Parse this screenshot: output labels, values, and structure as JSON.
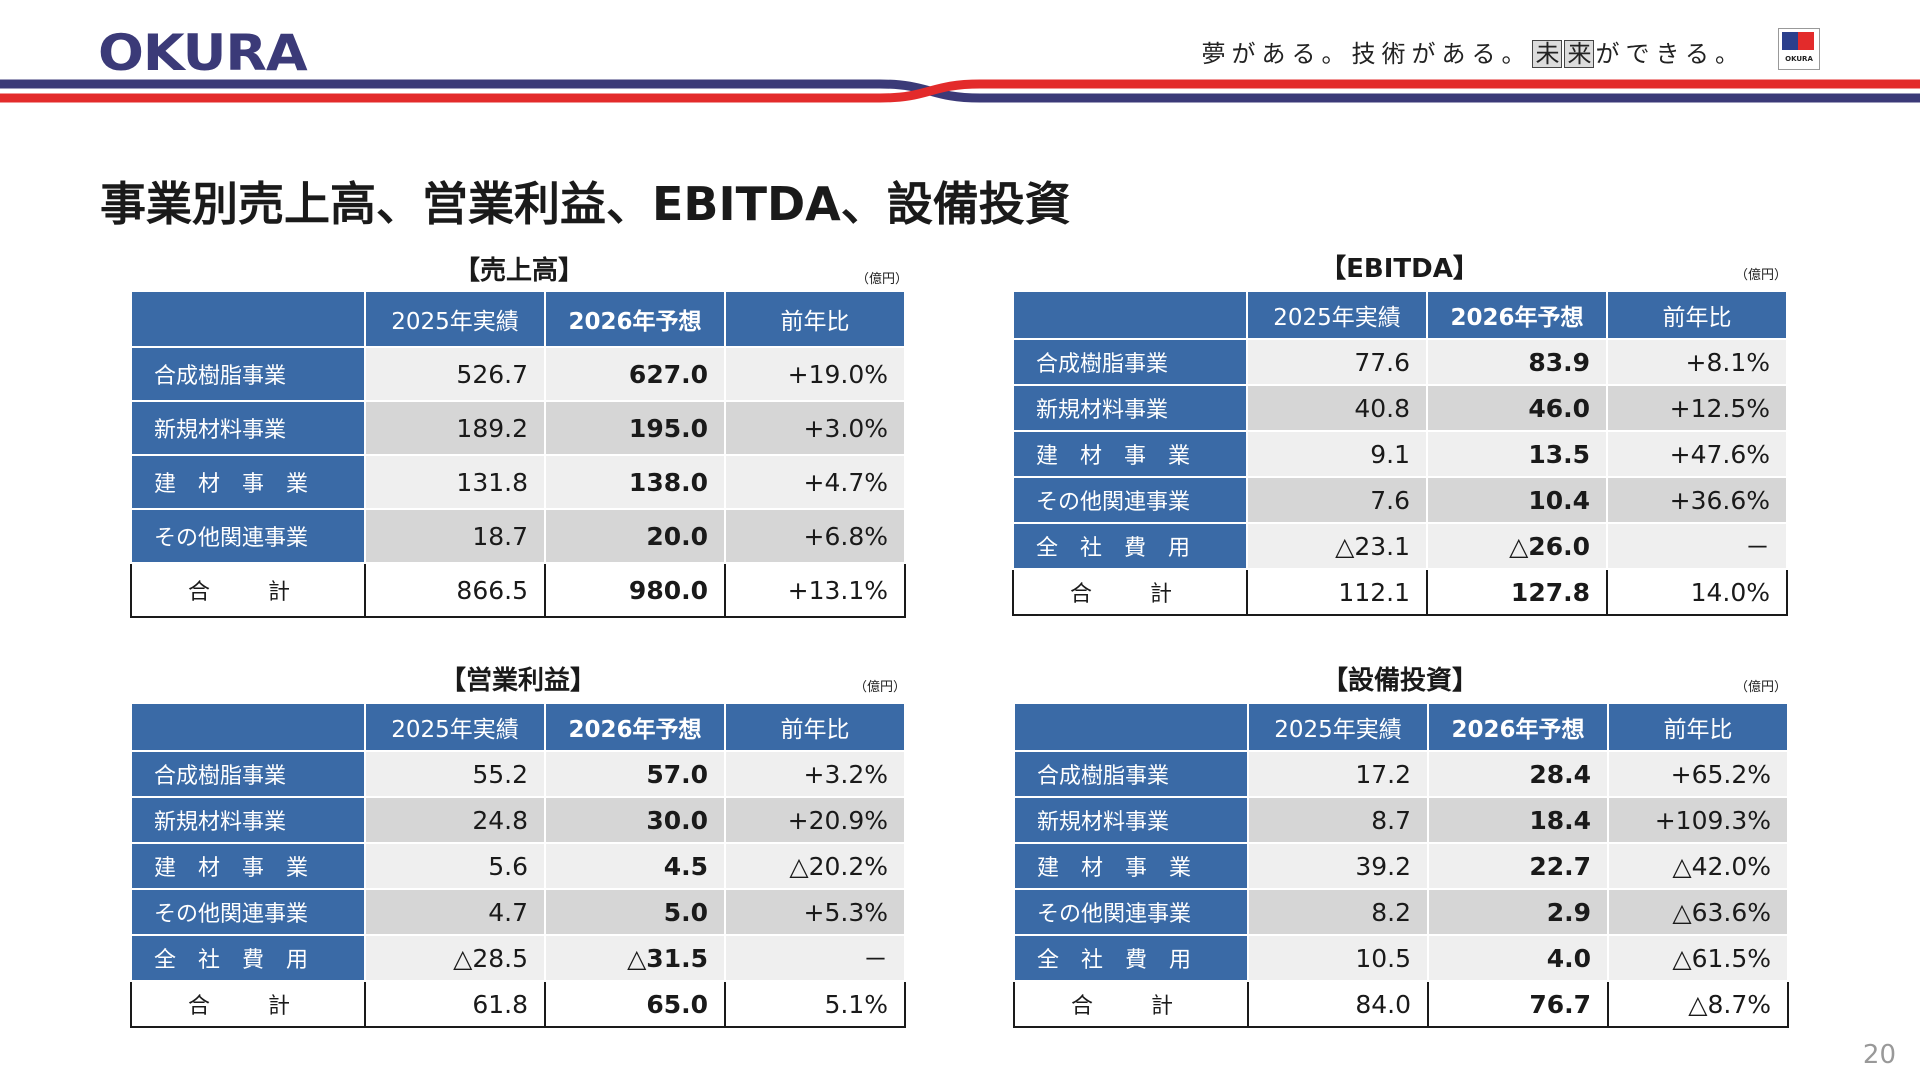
{
  "header": {
    "logo_text": "OKURA",
    "slogan_a": "夢がある。技術がある。",
    "slogan_box1": "未",
    "slogan_box2": "来",
    "slogan_b": "ができる。",
    "emblem_text": "OKURA",
    "brand_colors": {
      "navy": "#3b3a78",
      "red": "#e32b2b",
      "blue": "#2b3f8c"
    }
  },
  "page_title": "事業別売上高、営業利益、EBITDA、設備投資",
  "page_number": "20",
  "columns": [
    "",
    "2025年実績",
    "2026年予想",
    "前年比"
  ],
  "tables": {
    "sales": {
      "title": "【売上高】",
      "unit": "（億円）",
      "rows": [
        {
          "label": "合成樹脂事業",
          "a": "526.7",
          "b": "627.0",
          "c": "+19.0%"
        },
        {
          "label": "新規材料事業",
          "a": "189.2",
          "b": "195.0",
          "c": "+3.0%"
        },
        {
          "label": "建　材　事　業",
          "a": "131.8",
          "b": "138.0",
          "c": "+4.7%"
        },
        {
          "label": "その他関連事業",
          "a": "18.7",
          "b": "20.0",
          "c": "+6.8%"
        }
      ],
      "total": {
        "label": "合　計",
        "a": "866.5",
        "b": "980.0",
        "c": "+13.1%"
      }
    },
    "ebitda": {
      "title": "【EBITDA】",
      "unit": "（億円）",
      "rows": [
        {
          "label": "合成樹脂事業",
          "a": "77.6",
          "b": "83.9",
          "c": "+8.1%"
        },
        {
          "label": "新規材料事業",
          "a": "40.8",
          "b": "46.0",
          "c": "+12.5%"
        },
        {
          "label": "建　材　事　業",
          "a": "9.1",
          "b": "13.5",
          "c": "+47.6%"
        },
        {
          "label": "その他関連事業",
          "a": "7.6",
          "b": "10.4",
          "c": "+36.6%"
        },
        {
          "label": "全　社　費　用",
          "a": "△23.1",
          "b": "△26.0",
          "c": "－"
        }
      ],
      "total": {
        "label": "合　計",
        "a": "112.1",
        "b": "127.8",
        "c": "14.0%"
      }
    },
    "op_profit": {
      "title": "【営業利益】",
      "unit": "（億円）",
      "rows": [
        {
          "label": "合成樹脂事業",
          "a": "55.2",
          "b": "57.0",
          "c": "+3.2%"
        },
        {
          "label": "新規材料事業",
          "a": "24.8",
          "b": "30.0",
          "c": "+20.9%"
        },
        {
          "label": "建　材　事　業",
          "a": "5.6",
          "b": "4.5",
          "c": "△20.2%"
        },
        {
          "label": "その他関連事業",
          "a": "4.7",
          "b": "5.0",
          "c": "+5.3%"
        },
        {
          "label": "全　社　費　用",
          "a": "△28.5",
          "b": "△31.5",
          "c": "－"
        }
      ],
      "total": {
        "label": "合　計",
        "a": "61.8",
        "b": "65.0",
        "c": "5.1%"
      }
    },
    "capex": {
      "title": "【設備投資】",
      "unit": "（億円）",
      "rows": [
        {
          "label": "合成樹脂事業",
          "a": "17.2",
          "b": "28.4",
          "c": "+65.2%"
        },
        {
          "label": "新規材料事業",
          "a": "8.7",
          "b": "18.4",
          "c": "+109.3%"
        },
        {
          "label": "建　材　事　業",
          "a": "39.2",
          "b": "22.7",
          "c": "△42.0%"
        },
        {
          "label": "その他関連事業",
          "a": "8.2",
          "b": "2.9",
          "c": "△63.6%"
        },
        {
          "label": "全　社　費　用",
          "a": "10.5",
          "b": "4.0",
          "c": "△61.5%"
        }
      ],
      "total": {
        "label": "合　計",
        "a": "84.0",
        "b": "76.7",
        "c": "△8.7%"
      }
    }
  }
}
